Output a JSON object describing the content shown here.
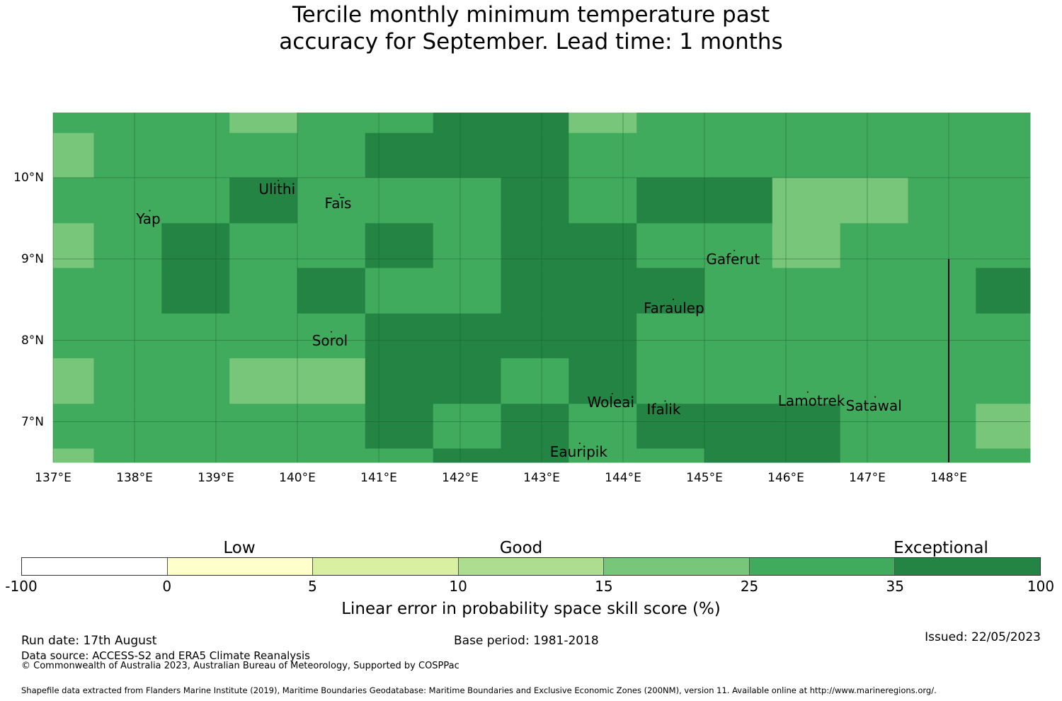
{
  "title_line1": "Tercile monthly minimum temperature past",
  "title_line2": "accuracy for September. Lead time: 1 months",
  "colors": {
    "c15_25": "#78c679",
    "c25_35": "#41ab5d",
    "c35_100": "#238443",
    "grid": "#1b5e2b",
    "boundary": "#000000"
  },
  "map": {
    "lon_range": [
      137,
      149
    ],
    "lat_range": [
      6.5,
      10.8
    ],
    "lon_ticks": [
      {
        "value": 137,
        "label": "137°E"
      },
      {
        "value": 138,
        "label": "138°E"
      },
      {
        "value": 139,
        "label": "139°E"
      },
      {
        "value": 140,
        "label": "140°E"
      },
      {
        "value": 141,
        "label": "141°E"
      },
      {
        "value": 142,
        "label": "142°E"
      },
      {
        "value": 143,
        "label": "143°E"
      },
      {
        "value": 144,
        "label": "144°E"
      },
      {
        "value": 145,
        "label": "145°E"
      },
      {
        "value": 146,
        "label": "146°E"
      },
      {
        "value": 147,
        "label": "147°E"
      },
      {
        "value": 148,
        "label": "148°E"
      }
    ],
    "lat_ticks": [
      {
        "value": 10,
        "label": "10°N"
      },
      {
        "value": 9,
        "label": "9°N"
      },
      {
        "value": 8,
        "label": "8°N"
      },
      {
        "value": 7,
        "label": "7°N"
      }
    ],
    "grid_lon_edges": [
      137,
      137.5,
      138.333,
      139.167,
      140,
      140.833,
      141.667,
      142.5,
      143.333,
      144.167,
      145,
      145.833,
      146.667,
      147.5,
      148.333,
      149
    ],
    "grid_lat_edges": [
      10.8,
      10.55,
      10,
      9.44,
      8.89,
      8.33,
      7.78,
      7.22,
      6.67,
      6.5
    ],
    "cell_classes": [
      [
        2,
        2,
        2,
        1,
        2,
        2,
        3,
        3,
        1,
        2,
        2,
        2,
        2,
        2,
        2
      ],
      [
        1,
        2,
        2,
        2,
        2,
        3,
        3,
        3,
        2,
        2,
        2,
        2,
        2,
        2,
        2
      ],
      [
        2,
        2,
        2,
        3,
        2,
        2,
        2,
        3,
        2,
        3,
        3,
        1,
        1,
        2,
        2
      ],
      [
        1,
        2,
        3,
        2,
        2,
        3,
        2,
        3,
        3,
        2,
        2,
        1,
        2,
        2,
        2
      ],
      [
        2,
        2,
        3,
        2,
        3,
        2,
        2,
        3,
        3,
        3,
        2,
        2,
        2,
        2,
        3
      ],
      [
        2,
        2,
        2,
        2,
        2,
        3,
        3,
        3,
        3,
        2,
        2,
        2,
        2,
        2,
        2
      ],
      [
        1,
        2,
        2,
        1,
        1,
        3,
        3,
        2,
        3,
        2,
        2,
        2,
        2,
        2,
        2
      ],
      [
        2,
        2,
        2,
        2,
        2,
        3,
        2,
        3,
        2,
        3,
        3,
        3,
        2,
        2,
        1
      ],
      [
        1,
        2,
        2,
        2,
        2,
        2,
        3,
        3,
        2,
        2,
        3,
        3,
        2,
        2,
        2
      ]
    ],
    "boundary_lon": 148,
    "boundary_lat_range": [
      6.5,
      9.0
    ],
    "places": [
      {
        "name": "Ulithi",
        "lon": 139.75,
        "lat": 9.86
      },
      {
        "name": "Yap",
        "lon": 138.17,
        "lat": 9.49
      },
      {
        "name": "Faīs",
        "lon": 140.5,
        "lat": 9.69
      },
      {
        "name": "Gaferut",
        "lon": 145.35,
        "lat": 9.0
      },
      {
        "name": "Faraulep",
        "lon": 144.6,
        "lat": 8.4
      },
      {
        "name": "Sorol",
        "lon": 140.4,
        "lat": 8.0
      },
      {
        "name": "Woleai",
        "lon": 143.85,
        "lat": 7.24
      },
      {
        "name": "Ifalik",
        "lon": 144.5,
        "lat": 7.15
      },
      {
        "name": "Lamotrek",
        "lon": 146.25,
        "lat": 7.26
      },
      {
        "name": "Satawal",
        "lon": 147.08,
        "lat": 7.2
      },
      {
        "name": "Eauripik",
        "lon": 143.45,
        "lat": 6.63
      }
    ]
  },
  "colorbar": {
    "ticks": [
      "-100",
      "0",
      "5",
      "10",
      "15",
      "25",
      "35",
      "100"
    ],
    "colors": [
      "#ffffff",
      "#ffffcc",
      "#d9f0a3",
      "#addd8e",
      "#78c679",
      "#41ab5d",
      "#238443"
    ],
    "categories": [
      "Low",
      "Good",
      "Exceptional"
    ],
    "label": "Linear error in probability space skill score (%)"
  },
  "footer": {
    "run_date": "Run date: 17th August",
    "base_period": "Base period: 1981-2018",
    "issued": "Issued: 22/05/2023",
    "data_source": "Data source: ACCESS-S2 and ERA5 Climate Reanalysis",
    "copyright": "© Commonwealth of Australia 2023, Australian Bureau of Meteorology, Supported by COSPPac",
    "shapefile": "Shapefile data extracted from Flanders Marine Institute (2019), Maritime Boundaries Geodatabase: Maritime Boundaries and Exclusive Economic Zones (200NM), version 11. Available online at http://www.marineregions.org/."
  }
}
